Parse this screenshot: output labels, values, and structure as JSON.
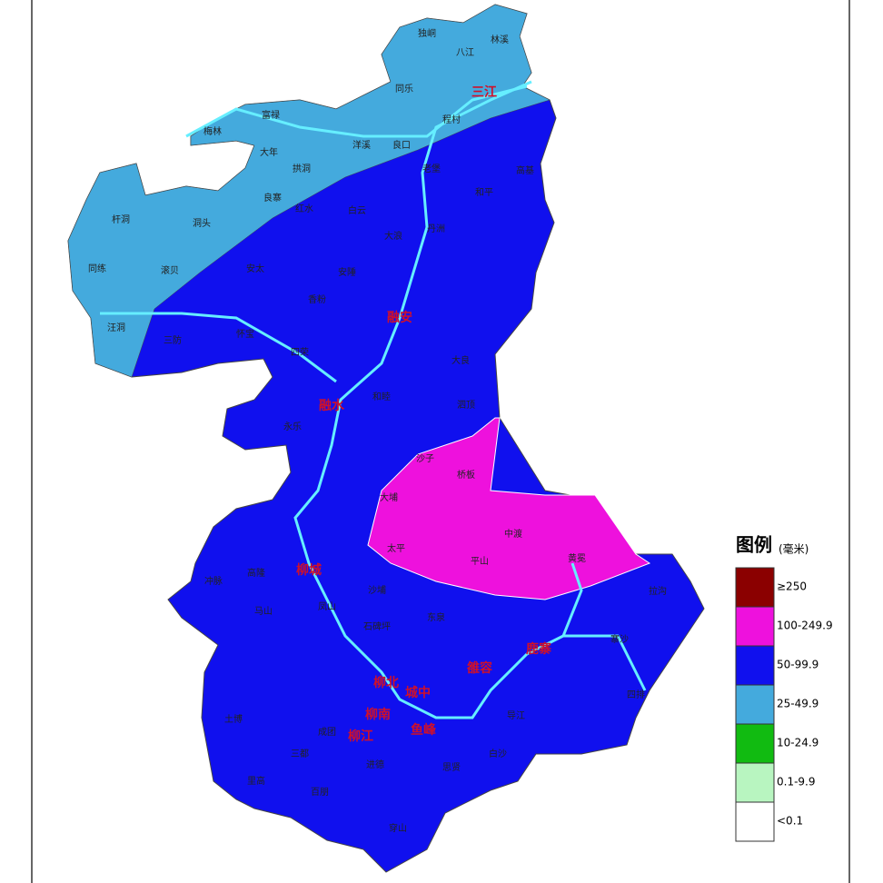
{
  "legend": {
    "title": "图例",
    "unit": "(毫米)",
    "items": [
      {
        "label": "≥250",
        "color": "#8b0000"
      },
      {
        "label": "100-249.9",
        "color": "#ee11dd"
      },
      {
        "label": "50-99.9",
        "color": "#1010ee"
      },
      {
        "label": "25-49.9",
        "color": "#44aadd"
      },
      {
        "label": "10-24.9",
        "color": "#11bb11"
      },
      {
        "label": "0.1-9.9",
        "color": "#b8f5c0"
      },
      {
        "label": "<0.1",
        "color": "#ffffff"
      }
    ]
  },
  "county_labels": [
    "三江",
    "融安",
    "融水",
    "柳城",
    "鹿寨",
    "雒容",
    "柳北",
    "城中",
    "柳南",
    "柳江",
    "鱼峰"
  ],
  "place_labels": [
    "独峒",
    "八江",
    "林溪",
    "同乐",
    "程村",
    "富禄",
    "梅林",
    "洋溪",
    "良口",
    "大年",
    "拱洞",
    "良寨",
    "杆洞",
    "洞头",
    "同练",
    "滚贝",
    "汪洞",
    "老堡",
    "高基",
    "和平",
    "红水",
    "白云",
    "丹洲",
    "大浪",
    "安太",
    "安陲",
    "香粉",
    "三防",
    "怀宝",
    "四荣",
    "大良",
    "和睦",
    "永乐",
    "泗顶",
    "沙子",
    "桥板",
    "大埔",
    "中渡",
    "黄冕",
    "太平",
    "平山",
    "冲脉",
    "高隆",
    "马山",
    "凤山",
    "沙埔",
    "石碑坪",
    "东泉",
    "拉沟",
    "寨沙",
    "四排",
    "导江",
    "白沙",
    "三都",
    "土博",
    "成团",
    "进德",
    "里高",
    "百朋",
    "穿山",
    "思贤"
  ]
}
